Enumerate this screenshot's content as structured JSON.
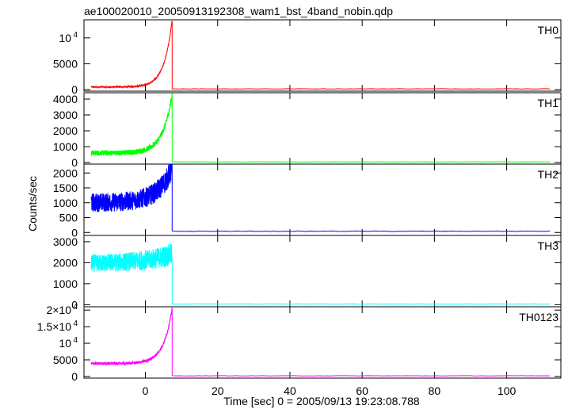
{
  "chart_data": {
    "type": "line",
    "title": "ae100020010_20050913192308_wam1_bst_4band_nobin.qdp",
    "xlabel": "Time [sec] 0 = 2005/09/13 19:23:08.788",
    "ylabel": "Counts/sec",
    "xlim": [
      -17,
      115
    ],
    "x_ticks": [
      "0",
      "20",
      "40",
      "60",
      "80",
      "100"
    ],
    "x_tick_values": [
      0,
      20,
      40,
      60,
      80,
      100
    ],
    "panels": [
      {
        "name": "TH0",
        "color": "#ff0000",
        "ylim": [
          -300,
          13500
        ],
        "y_ticks": [
          {
            "value": 0,
            "label": "0"
          },
          {
            "value": 5000,
            "label": "5000"
          },
          {
            "value": 10000,
            "label": "10",
            "sup": "4"
          }
        ],
        "baseline": 500,
        "noise": 160,
        "peak": 13500,
        "tau": 2.2,
        "post": 150
      },
      {
        "name": "TH1",
        "color": "#00ff00",
        "ylim": [
          -100,
          4400
        ],
        "y_ticks": [
          {
            "value": 0,
            "label": "0"
          },
          {
            "value": 1000,
            "label": "1000"
          },
          {
            "value": 2000,
            "label": "2000"
          },
          {
            "value": 3000,
            "label": "3000"
          },
          {
            "value": 4000,
            "label": "4000"
          }
        ],
        "baseline": 600,
        "noise": 170,
        "peak": 4300,
        "tau": 2.6,
        "post": 40
      },
      {
        "name": "TH2",
        "color": "#0000ff",
        "ylim": [
          -100,
          2300
        ],
        "y_ticks": [
          {
            "value": 0,
            "label": "0"
          },
          {
            "value": 500,
            "label": "500"
          },
          {
            "value": 1000,
            "label": "1000"
          },
          {
            "value": 1500,
            "label": "1500"
          },
          {
            "value": 2000,
            "label": "2000"
          }
        ],
        "baseline": 1000,
        "noise": 320,
        "peak": 2150,
        "tau": 4.0,
        "post": 40
      },
      {
        "name": "TH3",
        "color": "#00ffff",
        "ylim": [
          -100,
          3300
        ],
        "y_ticks": [
          {
            "value": 0,
            "label": "0"
          },
          {
            "value": 1000,
            "label": "1000"
          },
          {
            "value": 2000,
            "label": "2000"
          },
          {
            "value": 3000,
            "label": "3000"
          }
        ],
        "baseline": 1950,
        "noise": 420,
        "peak": 2400,
        "tau": 8.0,
        "post": 30
      },
      {
        "name": "TH0123",
        "color": "#ff00ff",
        "ylim": [
          -500,
          21000
        ],
        "y_ticks": [
          {
            "value": 0,
            "label": "0"
          },
          {
            "value": 5000,
            "label": "5000"
          },
          {
            "value": 10000,
            "label": "10",
            "sup": "4"
          },
          {
            "value": 15000,
            "label": "1.5×10",
            "sup": "4"
          },
          {
            "value": 20000,
            "label": "2×10",
            "sup": "4"
          }
        ],
        "baseline": 3900,
        "noise": 420,
        "peak": 20500,
        "tau": 2.4,
        "post": 200
      }
    ],
    "burst_start": -15,
    "burst_end": 7.4,
    "data_end": 112,
    "grid": false,
    "legend": "none"
  }
}
